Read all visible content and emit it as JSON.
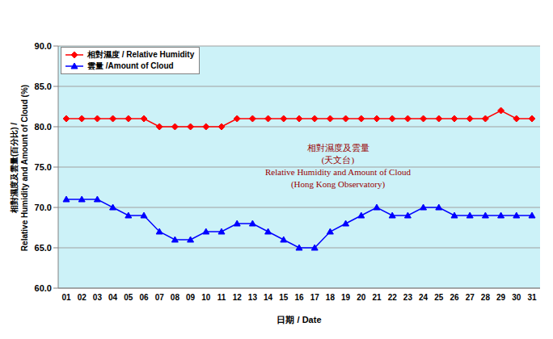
{
  "chart_data": {
    "type": "line",
    "annotations": [
      "相對濕度及雲量",
      "(天文台)",
      "Relative Humidity and Amount of Cloud",
      "(Hong Kong Observatory)"
    ],
    "x_label": "日期 / Date",
    "y_label": [
      "相對濕度及雲量(百分比) /",
      "Relative Humidity and Amount of Cloud (%)"
    ],
    "categories": [
      "01",
      "02",
      "03",
      "04",
      "05",
      "06",
      "07",
      "08",
      "09",
      "10",
      "11",
      "12",
      "13",
      "14",
      "15",
      "16",
      "17",
      "18",
      "19",
      "20",
      "21",
      "22",
      "23",
      "24",
      "25",
      "26",
      "27",
      "28",
      "29",
      "30",
      "31"
    ],
    "series": [
      {
        "name": "相對濕度 / Relative Humidity",
        "color": "#ff0000",
        "marker": "diamond",
        "values": [
          81,
          81,
          81,
          81,
          81,
          81,
          80,
          80,
          80,
          80,
          80,
          81,
          81,
          81,
          81,
          81,
          81,
          81,
          81,
          81,
          81,
          81,
          81,
          81,
          81,
          81,
          81,
          81,
          82,
          81,
          81
        ]
      },
      {
        "name": "雲量 /Amount of Cloud",
        "color": "#0000ff",
        "marker": "triangle",
        "values": [
          71,
          71,
          71,
          70,
          69,
          69,
          67,
          66,
          66,
          67,
          67,
          68,
          68,
          67,
          66,
          65,
          65,
          67,
          68,
          69,
          70,
          69,
          69,
          70,
          70,
          69,
          69,
          69,
          69,
          69,
          69
        ]
      }
    ],
    "ylim": [
      60,
      90
    ],
    "yticks": [
      {
        "value": 60,
        "label": "60.0"
      },
      {
        "value": 65,
        "label": "65.0"
      },
      {
        "value": 70,
        "label": "70.0"
      },
      {
        "value": 75,
        "label": "75.0"
      },
      {
        "value": 80,
        "label": "80.0"
      },
      {
        "value": 85,
        "label": "85.0"
      },
      {
        "value": 90,
        "label": "90.0"
      }
    ],
    "grid": true,
    "legend": "top-left"
  }
}
